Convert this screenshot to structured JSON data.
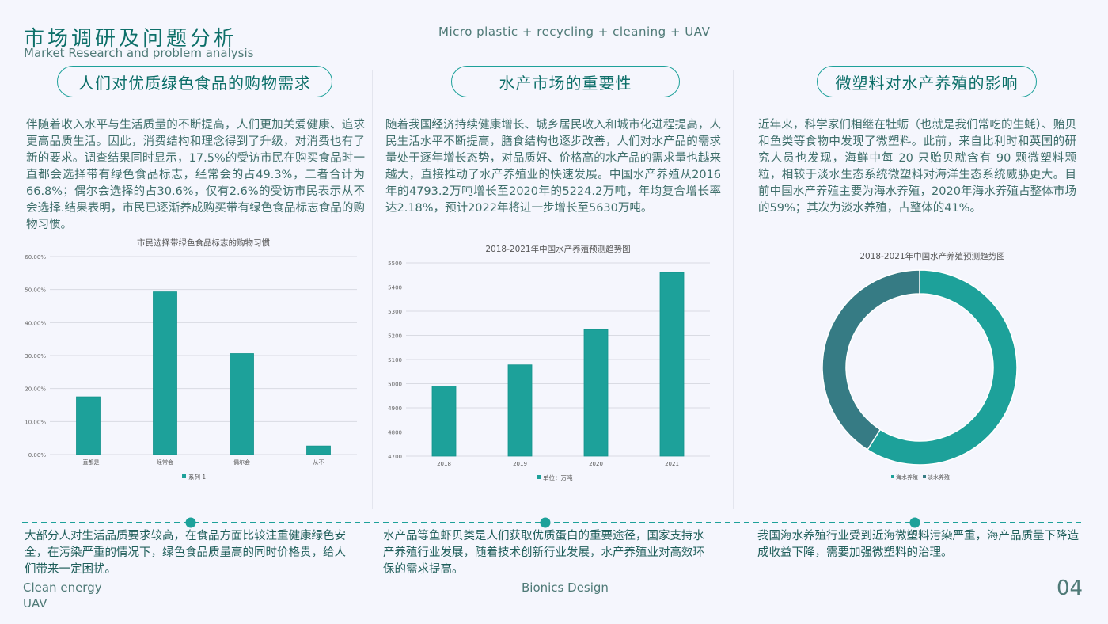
{
  "header": {
    "title": "市场调研及问题分析",
    "subtitle": "Market Research and problem analysis",
    "tagline": "Micro plastic + recycling + cleaning + UAV"
  },
  "columns": [
    {
      "heading": "人们对优质绿色食品的购物需求",
      "text": "伴随着收入水平与生活质量的不断提高，人们更加关爱健康、追求更高品质生活。因此，消费结构和理念得到了升级，对消费也有了新的要求。调查结果同时显示，17.5%的受访市民在购买食品时一直都会选择带有绿色食品标志，经常会的占49.3%，二者合计为66.8%；偶尔会选择的占30.6%，仅有2.6%的受访市民表示从不会选择.结果表明，市民已逐渐养成购买带有绿色食品标志食品的购物习惯。",
      "summary": "大部分人对生活品质要求较高，在食品方面比较注重健康绿色安全，在污染严重的情况下，绿色食品质量高的同时价格贵，给人们带来一定困扰。"
    },
    {
      "heading": "水产市场的重要性",
      "text": "随着我国经济持续健康增长、城乡居民收入和城市化进程提高，人民生活水平不断提高，膳食结构也逐步改善，人们对水产品的需求量处于逐年增长态势，对品质好、价格高的水产品的需求量也越来越大，直接推动了水产养殖业的快速发展。中国水产养殖从2016年的4793.2万吨增长至2020年的5224.2万吨，年均复合增长率达2.18%，预计2022年将进一步增长至5630万吨。",
      "summary": "水产品等鱼虾贝类是人们获取优质蛋白的重要途径，国家支持水产养殖行业发展，随着技术创新行业发展，水产养殖业对高效环保的需求提高。"
    },
    {
      "heading": "微塑料对水产养殖的影响",
      "text": "近年来，科学家们相继在牡蛎（也就是我们常吃的生蚝）、贻贝和鱼类等食物中发现了微塑料。此前，来自比利时和英国的研究人员也发现，海鲜中每 20 只贻贝就含有 90 颗微塑料颗粒，相较于淡水生态系统微塑料对海洋生态系统威胁更大。目前中国水产养殖主要为海水养殖，2020年海水养殖占整体市场的59%；其次为淡水养殖，占整体的41%。",
      "summary": "我国海水养殖行业受到近海微塑料污染严重，海产品质量下降造成收益下降，需要加强微塑料的治理。"
    }
  ],
  "footer": {
    "left1": "Clean energy",
    "left2": "UAV",
    "center": "Bionics Design",
    "page": "04"
  },
  "colors": {
    "accent": "#1da19a",
    "dark_accent": "#367b84",
    "title": "#0d6f69"
  },
  "chart_data": [
    {
      "type": "bar",
      "title": "市民选择带绿色食品标志的购物习惯",
      "categories": [
        "一直都是",
        "经常会",
        "偶尔会",
        "从不"
      ],
      "series": [
        {
          "name": "系列 1",
          "values": [
            17.5,
            49.3,
            30.6,
            2.6
          ]
        }
      ],
      "ylim": [
        0,
        60
      ],
      "yticks": [
        "0.00%",
        "10.00%",
        "20.00%",
        "30.00%",
        "40.00%",
        "50.00%",
        "60.00%"
      ],
      "grid": true,
      "legend": "bottom"
    },
    {
      "type": "bar",
      "title": "2018-2021年中国水产养殖预测趋势图",
      "categories": [
        "2018",
        "2019",
        "2020",
        "2021"
      ],
      "series": [
        {
          "name": "单位：万吨",
          "values": [
            4990,
            5078,
            5224,
            5460
          ]
        }
      ],
      "ylim": [
        4700,
        5500
      ],
      "yticks": [
        "4700",
        "4800",
        "4900",
        "5000",
        "5100",
        "5200",
        "5300",
        "5400",
        "5500"
      ],
      "grid": true,
      "legend": "bottom"
    },
    {
      "type": "pie",
      "donut": true,
      "title": "2018-2021年中国水产养殖预测趋势图",
      "labels": [
        "海水养殖",
        "淡水养殖"
      ],
      "values": [
        59,
        41
      ],
      "colors": [
        "#1da19a",
        "#367b84"
      ],
      "legend": "bottom"
    }
  ]
}
